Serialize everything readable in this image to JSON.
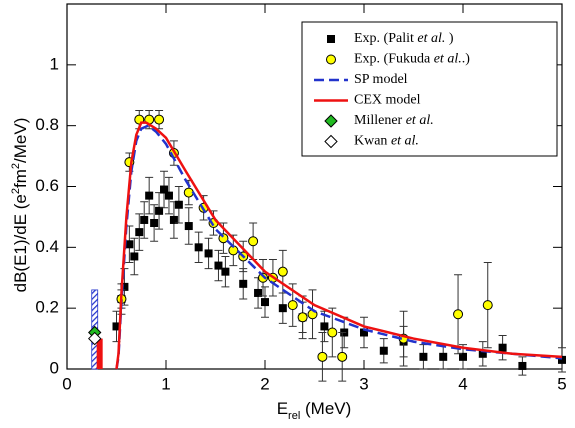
{
  "chart_data": {
    "type": "scatter",
    "xlabel": [
      {
        "text": "E"
      },
      {
        "text": "rel",
        "script": "sub"
      },
      {
        "text": " (MeV)"
      }
    ],
    "ylabel": [
      {
        "text": "dB(E1)/dE (e"
      },
      {
        "text": "2",
        "script": "super"
      },
      {
        "text": "fm"
      },
      {
        "text": "2",
        "script": "super"
      },
      {
        "text": "/MeV)"
      }
    ],
    "xlim": [
      0,
      5
    ],
    "ylim": [
      0,
      1.2
    ],
    "xticks": [
      0,
      1,
      2,
      3,
      4,
      5
    ],
    "yticks": [
      0,
      0.2,
      0.4,
      0.6,
      0.8,
      1
    ],
    "legend": "upper right",
    "series": [
      {
        "name": [
          {
            "text": "Exp. (Palit "
          },
          {
            "text": "et al.",
            "style": "italic"
          },
          {
            "text": " )"
          }
        ],
        "type": "scatter",
        "marker": "square",
        "color": "#000000",
        "x": [
          0.5,
          0.55,
          0.58,
          0.63,
          0.68,
          0.73,
          0.78,
          0.83,
          0.88,
          0.93,
          0.98,
          1.03,
          1.08,
          1.13,
          1.23,
          1.33,
          1.43,
          1.53,
          1.6,
          1.78,
          1.93,
          2.0,
          2.18,
          2.38,
          2.6,
          2.8,
          3.0,
          3.2,
          3.4,
          3.6,
          3.8,
          4.0,
          4.2,
          4.4,
          4.6,
          5.0
        ],
        "values": [
          0.14,
          0.23,
          0.27,
          0.41,
          0.37,
          0.45,
          0.49,
          0.57,
          0.48,
          0.52,
          0.59,
          0.57,
          0.49,
          0.54,
          0.47,
          0.4,
          0.38,
          0.34,
          0.32,
          0.28,
          0.25,
          0.22,
          0.2,
          0.17,
          0.14,
          0.12,
          0.12,
          0.06,
          0.09,
          0.04,
          0.04,
          0.04,
          0.05,
          0.07,
          0.01,
          0.03
        ],
        "errors": [
          0.05,
          0.05,
          0.06,
          0.06,
          0.06,
          0.06,
          0.06,
          0.06,
          0.06,
          0.06,
          0.06,
          0.06,
          0.06,
          0.06,
          0.06,
          0.05,
          0.05,
          0.05,
          0.05,
          0.05,
          0.05,
          0.05,
          0.05,
          0.05,
          0.05,
          0.05,
          0.05,
          0.04,
          0.05,
          0.04,
          0.04,
          0.04,
          0.04,
          0.04,
          0.03,
          0.04
        ]
      },
      {
        "name": [
          {
            "text": "Exp. (Fukuda  "
          },
          {
            "text": "et al.",
            "style": "italic"
          },
          {
            "text": ".)"
          }
        ],
        "type": "scatter",
        "marker": "circle",
        "color": "#ffff00",
        "x": [
          0.55,
          0.63,
          0.73,
          0.83,
          0.93,
          1.08,
          1.23,
          1.38,
          1.48,
          1.58,
          1.68,
          1.78,
          1.88,
          1.98,
          2.08,
          2.18,
          2.28,
          2.38,
          2.48,
          2.58,
          2.68,
          2.78,
          3.4,
          3.95,
          4.25
        ],
        "values": [
          0.23,
          0.68,
          0.82,
          0.82,
          0.82,
          0.71,
          0.58,
          0.53,
          0.48,
          0.43,
          0.39,
          0.37,
          0.42,
          0.3,
          0.3,
          0.32,
          0.21,
          0.17,
          0.18,
          0.04,
          0.12,
          0.04,
          0.1,
          0.18,
          0.21
        ],
        "errors": [
          0.03,
          0.03,
          0.03,
          0.03,
          0.03,
          0.04,
          0.04,
          0.04,
          0.04,
          0.05,
          0.05,
          0.05,
          0.06,
          0.06,
          0.06,
          0.07,
          0.07,
          0.07,
          0.08,
          0.08,
          0.08,
          0.08,
          0.09,
          0.13,
          0.14
        ]
      },
      {
        "name": [
          {
            "text": "SP model"
          }
        ],
        "type": "line",
        "dash": true,
        "color": "#2233cc",
        "x": [
          0.5,
          0.52,
          0.55,
          0.6,
          0.65,
          0.7,
          0.75,
          0.82,
          0.9,
          1.0,
          1.2,
          1.5,
          2.0,
          2.5,
          3.0,
          3.5,
          4.0,
          4.5,
          5.0
        ],
        "values": [
          0,
          0.04,
          0.22,
          0.47,
          0.65,
          0.75,
          0.79,
          0.8,
          0.78,
          0.74,
          0.62,
          0.46,
          0.3,
          0.19,
          0.13,
          0.09,
          0.065,
          0.05,
          0.035
        ]
      },
      {
        "name": [
          {
            "text": "CEX model"
          }
        ],
        "type": "line",
        "dash": false,
        "color": "#ee1111",
        "x": [
          0.5,
          0.52,
          0.55,
          0.6,
          0.65,
          0.7,
          0.75,
          0.8,
          0.9,
          1.0,
          1.2,
          1.5,
          2.0,
          2.5,
          3.0,
          3.5,
          4.0,
          4.5,
          5.0
        ],
        "values": [
          0,
          0.05,
          0.25,
          0.5,
          0.68,
          0.77,
          0.81,
          0.81,
          0.79,
          0.76,
          0.65,
          0.49,
          0.32,
          0.21,
          0.14,
          0.1,
          0.07,
          0.05,
          0.04
        ]
      },
      {
        "name": [
          {
            "text": "Millener "
          },
          {
            "text": "et al.",
            "style": "italic"
          }
        ],
        "type": "scatter",
        "marker": "diamond",
        "color": "#22bb22",
        "x": [
          0.28
        ],
        "values": [
          0.12
        ]
      },
      {
        "name": [
          {
            "text": "Kwan "
          },
          {
            "text": "et al.",
            "style": "italic"
          }
        ],
        "type": "scatter",
        "marker": "diamond",
        "color": "#ffffff",
        "x": [
          0.28
        ],
        "values": [
          0.1
        ]
      }
    ],
    "bars": [
      {
        "x": 0.28,
        "value": 0.26,
        "color": "#2233cc",
        "hatch": true
      },
      {
        "x": 0.33,
        "value": 0.1,
        "color": "#ee1111",
        "hatch": false
      }
    ]
  }
}
